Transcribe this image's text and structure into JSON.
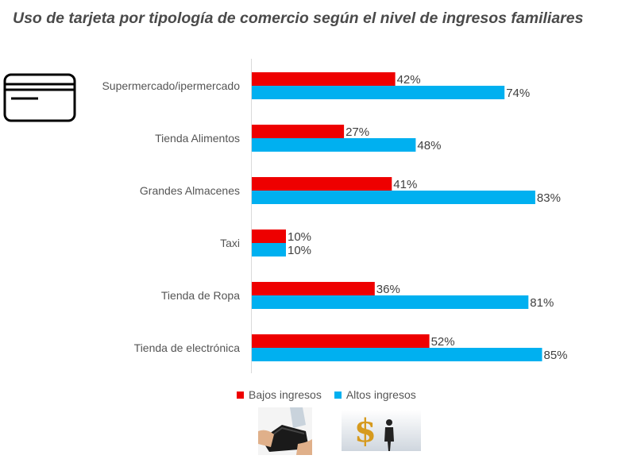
{
  "chart_data": {
    "type": "bar",
    "orientation": "horizontal",
    "title": "Uso de tarjeta por tipología de comercio según el nivel de ingresos familiares",
    "categories": [
      "Supermercado/ipermercado",
      "Tienda Alimentos",
      "Grandes Almacenes",
      "Taxi",
      "Tienda de Ropa",
      "Tienda de electrónica"
    ],
    "series": [
      {
        "name": "Bajos ingresos",
        "color": "#ee0000",
        "values": [
          42,
          27,
          41,
          10,
          36,
          52
        ],
        "labels": [
          "42%",
          "27%",
          "41%",
          "10%",
          "36%",
          "52%"
        ]
      },
      {
        "name": "Altos ingresos",
        "color": "#00b0f0",
        "values": [
          74,
          48,
          83,
          10,
          81,
          85
        ],
        "labels": [
          "74%",
          "48%",
          "83%",
          "10%",
          "81%",
          "85%"
        ]
      }
    ],
    "xlim": [
      0,
      85
    ],
    "grid": false,
    "legend_position": "bottom"
  },
  "icons": [
    "credit-card-icon",
    "empty-wallet-image",
    "money-businessman-image"
  ]
}
